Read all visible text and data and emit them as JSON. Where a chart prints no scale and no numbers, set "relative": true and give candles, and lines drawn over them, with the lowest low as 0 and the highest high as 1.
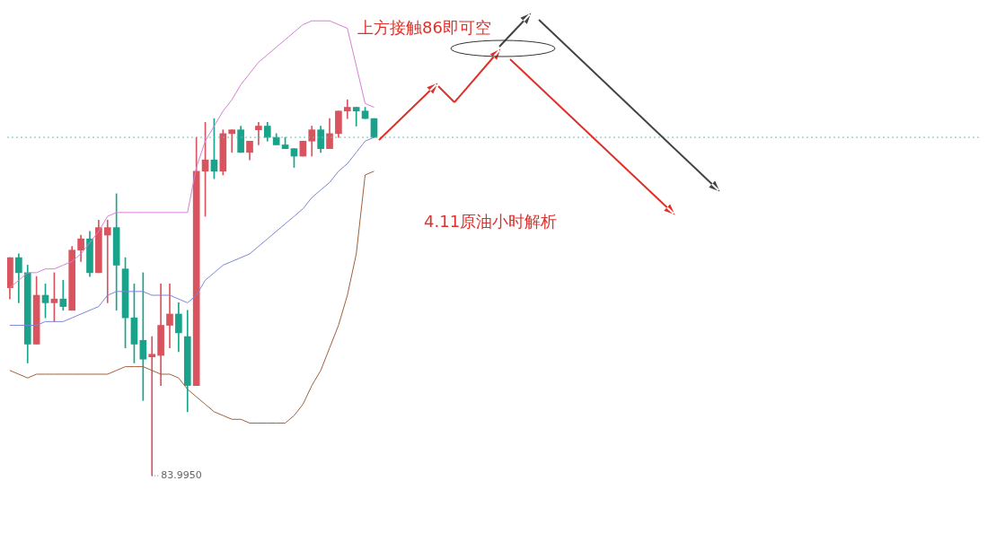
{
  "chart_data": {
    "type": "candlestick",
    "relative": true,
    "title": "4.11原油小时解析",
    "annotations": [
      "上方接触86即可空",
      "83.9950"
    ],
    "categories": [
      null,
      null,
      null,
      null,
      null,
      null,
      null,
      null,
      null,
      null,
      null,
      null,
      null,
      null,
      null,
      null,
      null,
      null,
      null,
      null,
      null,
      null,
      null,
      null,
      null,
      null,
      null,
      null,
      null,
      null,
      null,
      null,
      null,
      null,
      null,
      null,
      null,
      null,
      null,
      null,
      null,
      null
    ],
    "ohlc": [
      [
        0.5,
        0.58,
        0.47,
        0.58
      ],
      [
        0.58,
        0.59,
        0.46,
        0.54
      ],
      [
        0.54,
        0.56,
        0.3,
        0.35
      ],
      [
        0.35,
        0.53,
        0.35,
        0.48
      ],
      [
        0.48,
        0.51,
        0.42,
        0.46
      ],
      [
        0.46,
        0.54,
        0.41,
        0.47
      ],
      [
        0.47,
        0.52,
        0.44,
        0.45
      ],
      [
        0.44,
        0.61,
        0.44,
        0.6
      ],
      [
        0.6,
        0.64,
        0.57,
        0.63
      ],
      [
        0.63,
        0.65,
        0.53,
        0.54
      ],
      [
        0.54,
        0.68,
        0.54,
        0.66
      ],
      [
        0.64,
        0.68,
        0.46,
        0.66
      ],
      [
        0.66,
        0.75,
        0.44,
        0.56
      ],
      [
        0.55,
        0.58,
        0.34,
        0.42
      ],
      [
        0.42,
        0.51,
        0.3,
        0.35
      ],
      [
        0.36,
        0.54,
        0.2,
        0.31
      ],
      [
        0.316,
        0.37,
        0,
        0.323
      ],
      [
        0.32,
        0.51,
        0.24,
        0.4
      ],
      [
        0.4,
        0.51,
        0.34,
        0.43
      ],
      [
        0.43,
        0.46,
        0.33,
        0.38
      ],
      [
        0.37,
        0.44,
        0.17,
        0.24
      ],
      [
        0.24,
        0.9,
        0.24,
        0.81
      ],
      [
        0.81,
        0.94,
        0.69,
        0.84
      ],
      [
        0.84,
        0.95,
        0.79,
        0.81
      ],
      [
        0.81,
        0.92,
        0.8,
        0.91
      ],
      [
        0.91,
        0.92,
        0.86,
        0.92
      ],
      [
        0.92,
        0.93,
        0.86,
        0.86
      ],
      [
        0.86,
        0.89,
        0.84,
        0.89
      ],
      [
        0.92,
        0.94,
        0.88,
        0.93
      ],
      [
        0.93,
        0.94,
        0.89,
        0.9
      ],
      [
        0.9,
        0.91,
        0.88,
        0.88
      ],
      [
        0.88,
        0.9,
        0.87,
        0.87
      ],
      [
        0.87,
        0.87,
        0.82,
        0.85
      ],
      [
        0.85,
        0.89,
        0.85,
        0.89
      ],
      [
        0.89,
        0.93,
        0.85,
        0.92
      ],
      [
        0.92,
        0.93,
        0.86,
        0.87
      ],
      [
        0.87,
        0.95,
        0.87,
        0.91
      ],
      [
        0.91,
        0.97,
        0.9,
        0.97
      ],
      [
        0.97,
        1,
        0.95,
        0.98
      ],
      [
        0.98,
        0.98,
        0.93,
        0.97
      ],
      [
        0.97,
        0.98,
        0.95,
        0.95
      ],
      [
        0.95,
        0.95,
        0.9,
        0.9
      ]
    ],
    "colors": [
      "#d9545e",
      "#1aa38a",
      "#1aa38a",
      "#d9545e",
      "#1aa38a",
      "#d9545e",
      "#1aa38a",
      "#d9545e",
      "#d9545e",
      "#1aa38a",
      "#d9545e",
      "#d9545e",
      "#1aa38a",
      "#1aa38a",
      "#1aa38a",
      "#1aa38a",
      "#d9545e",
      "#d9545e",
      "#d9545e",
      "#1aa38a",
      "#1aa38a",
      "#d9545e",
      "#d9545e",
      "#1aa38a",
      "#d9545e",
      "#d9545e",
      "#1aa38a",
      "#d9545e",
      "#d9545e",
      "#1aa38a",
      "#1aa38a",
      "#1aa38a",
      "#1aa38a",
      "#d9545e",
      "#d9545e",
      "#1aa38a",
      "#d9545e",
      "#d9545e",
      "#d9545e",
      "#1aa38a",
      "#1aa38a",
      "#1aa38a"
    ],
    "series": [
      {
        "type": "line",
        "color": "#d67fd6",
        "values": [
          0.5,
          0.52,
          0.54,
          0.54,
          0.55,
          0.55,
          0.56,
          0.57,
          0.59,
          0.62,
          0.65,
          0.69,
          0.7,
          0.7,
          0.7,
          0.7,
          0.7,
          0.7,
          0.7,
          0.7,
          0.7,
          0.82,
          0.89,
          0.93,
          0.97,
          1.0,
          1.04,
          1.07,
          1.1,
          1.12,
          1.14,
          1.16,
          1.18,
          1.2,
          1.21,
          1.21,
          1.21,
          1.2,
          1.19,
          1.09,
          0.99,
          0.98
        ]
      },
      {
        "type": "line",
        "color": "#7b86d6",
        "values": [
          0.4,
          0.4,
          0.4,
          0.4,
          0.41,
          0.41,
          0.41,
          0.42,
          0.43,
          0.44,
          0.45,
          0.48,
          0.49,
          0.49,
          0.49,
          0.49,
          0.48,
          0.48,
          0.48,
          0.47,
          0.46,
          0.48,
          0.52,
          0.54,
          0.56,
          0.57,
          0.58,
          0.59,
          0.61,
          0.63,
          0.65,
          0.67,
          0.69,
          0.71,
          0.74,
          0.76,
          0.78,
          0.81,
          0.83,
          0.86,
          0.89,
          0.9
        ]
      },
      {
        "type": "line",
        "color": "#a0603c",
        "values": [
          0.28,
          0.27,
          0.26,
          0.27,
          0.27,
          0.27,
          0.27,
          0.27,
          0.27,
          0.27,
          0.27,
          0.27,
          0.28,
          0.29,
          0.29,
          0.29,
          0.28,
          0.27,
          0.27,
          0.26,
          0.23,
          0.21,
          0.19,
          0.17,
          0.16,
          0.15,
          0.15,
          0.14,
          0.14,
          0.14,
          0.14,
          0.14,
          0.16,
          0.19,
          0.24,
          0.28,
          0.34,
          0.4,
          0.48,
          0.59,
          0.8,
          0.81
        ]
      }
    ],
    "ref_lines": [
      {
        "axis": "y",
        "value": 0.9,
        "color": "#5fc9b0",
        "line_style": "dotted"
      }
    ]
  }
}
